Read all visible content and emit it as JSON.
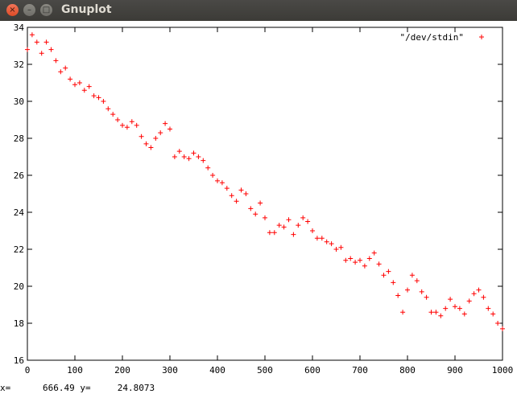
{
  "window": {
    "title": "Gnuplot",
    "close_glyph": "×",
    "min_glyph": "–",
    "max_glyph": "□"
  },
  "status": {
    "x_label": "x=",
    "x_value": "666.49",
    "y_label": "y=",
    "y_value": "24.8073"
  },
  "chart_data": {
    "type": "scatter",
    "title": "",
    "xlabel": "",
    "ylabel": "",
    "xlim": [
      0,
      1000
    ],
    "ylim": [
      16,
      34
    ],
    "x_ticks": [
      0,
      100,
      200,
      300,
      400,
      500,
      600,
      700,
      800,
      900,
      1000
    ],
    "y_ticks": [
      16,
      18,
      20,
      22,
      24,
      26,
      28,
      30,
      32,
      34
    ],
    "grid": false,
    "legend_position": "top-right",
    "marker": "+",
    "color": "#ff0000",
    "series": [
      {
        "name": "\"/dev/stdin\"",
        "x": [
          0,
          10,
          20,
          30,
          40,
          50,
          60,
          70,
          80,
          90,
          100,
          110,
          120,
          130,
          140,
          150,
          160,
          170,
          180,
          190,
          200,
          210,
          220,
          230,
          240,
          250,
          260,
          270,
          280,
          290,
          300,
          310,
          320,
          330,
          340,
          350,
          360,
          370,
          380,
          390,
          400,
          410,
          420,
          430,
          440,
          450,
          460,
          470,
          480,
          490,
          500,
          510,
          520,
          530,
          540,
          550,
          560,
          570,
          580,
          590,
          600,
          610,
          620,
          630,
          640,
          650,
          660,
          670,
          680,
          690,
          700,
          710,
          720,
          730,
          740,
          750,
          760,
          770,
          780,
          790,
          800,
          810,
          820,
          830,
          840,
          850,
          860,
          870,
          880,
          890,
          900,
          910,
          920,
          930,
          940,
          950,
          960,
          970,
          980,
          990,
          1000
        ],
        "y": [
          32.8,
          33.6,
          33.2,
          32.6,
          33.2,
          32.8,
          32.2,
          31.6,
          31.8,
          31.2,
          30.9,
          31.0,
          30.6,
          30.8,
          30.3,
          30.2,
          30.0,
          29.6,
          29.3,
          29.0,
          28.7,
          28.6,
          28.9,
          28.7,
          28.1,
          27.7,
          27.5,
          28.0,
          28.3,
          28.8,
          28.5,
          27.0,
          27.3,
          27.0,
          26.9,
          27.2,
          27.0,
          26.8,
          26.4,
          26.0,
          25.7,
          25.6,
          25.3,
          24.9,
          24.6,
          25.2,
          25.0,
          24.2,
          23.9,
          24.5,
          23.7,
          22.9,
          22.9,
          23.3,
          23.2,
          23.6,
          22.8,
          23.3,
          23.7,
          23.5,
          23.0,
          22.6,
          22.6,
          22.4,
          22.3,
          22.0,
          22.1,
          21.4,
          21.5,
          21.3,
          21.4,
          21.1,
          21.5,
          21.8,
          21.2,
          20.6,
          20.8,
          20.2,
          19.5,
          18.6,
          19.8,
          20.6,
          20.3,
          19.7,
          19.4,
          18.6,
          18.6,
          18.4,
          18.8,
          19.3,
          18.9,
          18.8,
          18.5,
          19.2,
          19.6,
          19.8,
          19.4,
          18.8,
          18.5,
          18.0,
          17.7
        ]
      }
    ]
  }
}
